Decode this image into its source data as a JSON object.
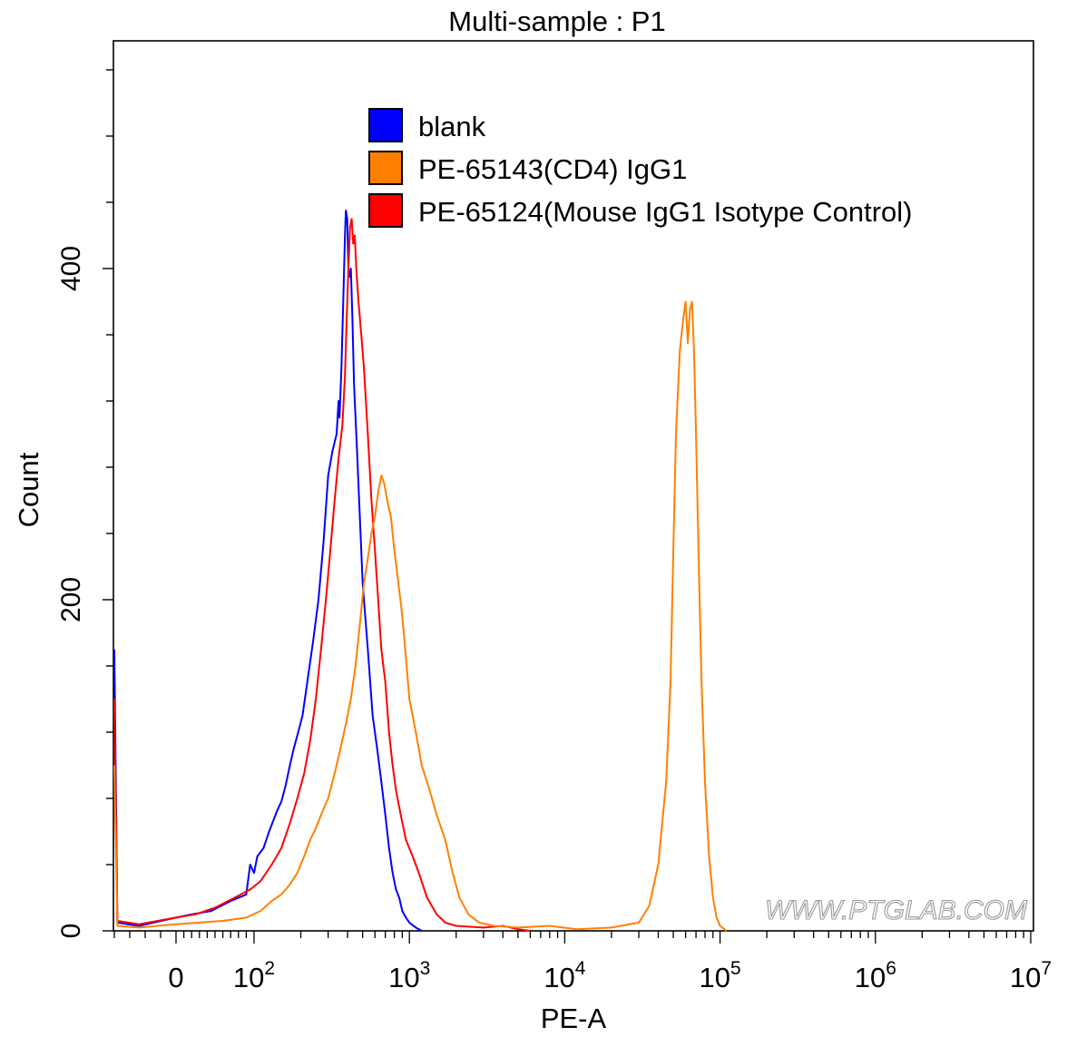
{
  "chart_data": {
    "type": "line",
    "title": "Multi-sample : P1",
    "xlabel": "PE-A",
    "ylabel": "Count",
    "x_scale": "biexponential (log above ~10^2)",
    "x_ticks": [
      {
        "label": "0",
        "value": 0
      },
      {
        "label": "10",
        "sup": "2",
        "value": 100
      },
      {
        "label": "10",
        "sup": "3",
        "value": 1000
      },
      {
        "label": "10",
        "sup": "4",
        "value": 10000
      },
      {
        "label": "10",
        "sup": "5",
        "value": 100000
      },
      {
        "label": "10",
        "sup": "6",
        "value": 1000000
      },
      {
        "label": "10",
        "sup": "7",
        "value": 10000000
      }
    ],
    "y_ticks": [
      {
        "label": "0",
        "value": 0
      },
      {
        "label": "200",
        "value": 200
      },
      {
        "label": "400",
        "value": 400
      }
    ],
    "ylim": [
      0,
      525
    ],
    "legend": [
      {
        "label": "blank",
        "color": "#0000ff"
      },
      {
        "label": "PE-65143(CD4) IgG1",
        "color": "#ff8000"
      },
      {
        "label": "PE-65124(Mouse IgG1 Isotype Control)",
        "color": "#ff0000"
      }
    ],
    "legend_position": "top",
    "watermark": "WWW.PTGLAB.COM",
    "series": [
      {
        "name": "blank",
        "color": "#0000ff",
        "points": [
          [
            -20,
            170
          ],
          [
            -19,
            5
          ],
          [
            -12,
            3
          ],
          [
            0,
            8
          ],
          [
            20,
            10
          ],
          [
            45,
            12
          ],
          [
            70,
            18
          ],
          [
            90,
            22
          ],
          [
            95,
            40
          ],
          [
            100,
            35
          ],
          [
            105,
            45
          ],
          [
            115,
            50
          ],
          [
            125,
            60
          ],
          [
            140,
            72
          ],
          [
            150,
            78
          ],
          [
            160,
            88
          ],
          [
            170,
            100
          ],
          [
            180,
            110
          ],
          [
            190,
            118
          ],
          [
            205,
            130
          ],
          [
            220,
            150
          ],
          [
            240,
            175
          ],
          [
            260,
            200
          ],
          [
            280,
            235
          ],
          [
            300,
            275
          ],
          [
            320,
            290
          ],
          [
            340,
            300
          ],
          [
            350,
            320
          ],
          [
            355,
            310
          ],
          [
            365,
            340
          ],
          [
            375,
            380
          ],
          [
            385,
            420
          ],
          [
            390,
            435
          ],
          [
            398,
            430
          ],
          [
            405,
            400
          ],
          [
            412,
            395
          ],
          [
            420,
            400
          ],
          [
            430,
            370
          ],
          [
            440,
            330
          ],
          [
            460,
            290
          ],
          [
            480,
            250
          ],
          [
            500,
            210
          ],
          [
            540,
            170
          ],
          [
            580,
            130
          ],
          [
            620,
            110
          ],
          [
            660,
            90
          ],
          [
            700,
            70
          ],
          [
            740,
            50
          ],
          [
            780,
            35
          ],
          [
            820,
            25
          ],
          [
            860,
            20
          ],
          [
            900,
            12
          ],
          [
            950,
            8
          ],
          [
            1000,
            5
          ],
          [
            1100,
            2
          ],
          [
            1200,
            0
          ]
        ]
      },
      {
        "name": "PE-65124(Mouse IgG1 Isotype Control)",
        "color": "#ff0000",
        "points": [
          [
            -20,
            140
          ],
          [
            -19,
            6
          ],
          [
            -12,
            4
          ],
          [
            0,
            8
          ],
          [
            25,
            10
          ],
          [
            50,
            14
          ],
          [
            75,
            20
          ],
          [
            95,
            25
          ],
          [
            110,
            30
          ],
          [
            130,
            40
          ],
          [
            150,
            50
          ],
          [
            170,
            65
          ],
          [
            190,
            80
          ],
          [
            210,
            95
          ],
          [
            230,
            115
          ],
          [
            250,
            140
          ],
          [
            270,
            170
          ],
          [
            290,
            200
          ],
          [
            310,
            230
          ],
          [
            330,
            260
          ],
          [
            350,
            285
          ],
          [
            370,
            305
          ],
          [
            385,
            335
          ],
          [
            395,
            370
          ],
          [
            405,
            400
          ],
          [
            415,
            425
          ],
          [
            425,
            430
          ],
          [
            435,
            415
          ],
          [
            445,
            420
          ],
          [
            455,
            400
          ],
          [
            470,
            380
          ],
          [
            490,
            360
          ],
          [
            510,
            340
          ],
          [
            540,
            300
          ],
          [
            570,
            260
          ],
          [
            600,
            230
          ],
          [
            630,
            200
          ],
          [
            660,
            170
          ],
          [
            700,
            150
          ],
          [
            740,
            120
          ],
          [
            780,
            100
          ],
          [
            820,
            85
          ],
          [
            880,
            70
          ],
          [
            950,
            55
          ],
          [
            1050,
            45
          ],
          [
            1150,
            35
          ],
          [
            1300,
            20
          ],
          [
            1500,
            10
          ],
          [
            1700,
            5
          ],
          [
            2000,
            3
          ],
          [
            3000,
            2
          ],
          [
            4000,
            3
          ],
          [
            5000,
            1
          ],
          [
            6000,
            0
          ]
        ]
      },
      {
        "name": "PE-65143(CD4) IgG1",
        "color": "#ff8000",
        "points": [
          [
            -20,
            100
          ],
          [
            -19,
            3
          ],
          [
            -12,
            2
          ],
          [
            0,
            4
          ],
          [
            30,
            5
          ],
          [
            60,
            6
          ],
          [
            90,
            8
          ],
          [
            110,
            12
          ],
          [
            130,
            18
          ],
          [
            150,
            22
          ],
          [
            170,
            28
          ],
          [
            190,
            35
          ],
          [
            210,
            45
          ],
          [
            230,
            55
          ],
          [
            250,
            62
          ],
          [
            270,
            70
          ],
          [
            300,
            80
          ],
          [
            330,
            95
          ],
          [
            360,
            110
          ],
          [
            390,
            125
          ],
          [
            420,
            140
          ],
          [
            450,
            160
          ],
          [
            480,
            185
          ],
          [
            510,
            210
          ],
          [
            540,
            225
          ],
          [
            570,
            240
          ],
          [
            600,
            250
          ],
          [
            630,
            265
          ],
          [
            660,
            275
          ],
          [
            690,
            270
          ],
          [
            720,
            260
          ],
          [
            760,
            250
          ],
          [
            800,
            230
          ],
          [
            850,
            210
          ],
          [
            900,
            190
          ],
          [
            950,
            165
          ],
          [
            1000,
            140
          ],
          [
            1100,
            120
          ],
          [
            1200,
            100
          ],
          [
            1350,
            85
          ],
          [
            1500,
            70
          ],
          [
            1700,
            55
          ],
          [
            1900,
            35
          ],
          [
            2100,
            20
          ],
          [
            2400,
            10
          ],
          [
            2800,
            5
          ],
          [
            3500,
            3
          ],
          [
            5000,
            2
          ],
          [
            8000,
            3
          ],
          [
            12000,
            1
          ],
          [
            20000,
            2
          ],
          [
            30000,
            5
          ],
          [
            35000,
            15
          ],
          [
            40000,
            40
          ],
          [
            45000,
            90
          ],
          [
            48000,
            150
          ],
          [
            50000,
            230
          ],
          [
            52000,
            300
          ],
          [
            55000,
            350
          ],
          [
            58000,
            370
          ],
          [
            60000,
            380
          ],
          [
            62000,
            355
          ],
          [
            64000,
            375
          ],
          [
            66000,
            380
          ],
          [
            68000,
            350
          ],
          [
            70000,
            300
          ],
          [
            73000,
            220
          ],
          [
            76000,
            150
          ],
          [
            80000,
            90
          ],
          [
            85000,
            45
          ],
          [
            90000,
            20
          ],
          [
            95000,
            8
          ],
          [
            100000,
            3
          ],
          [
            110000,
            0
          ]
        ]
      }
    ]
  }
}
